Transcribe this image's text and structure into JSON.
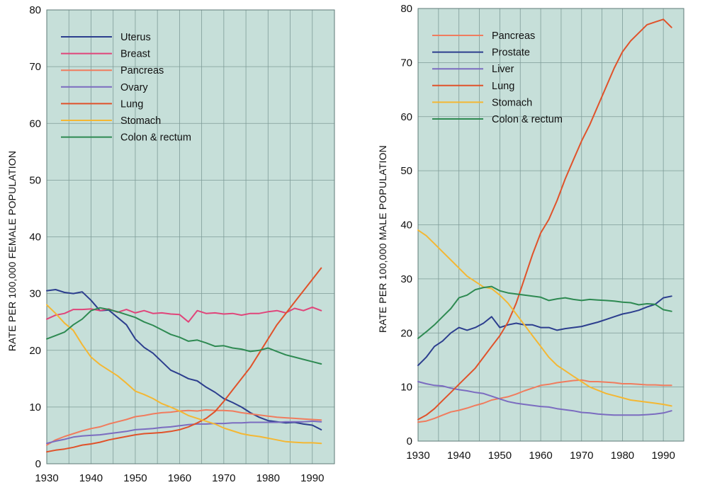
{
  "colors": {
    "plot_bg": "#c6dfd9",
    "grid": "#7f9c98",
    "uterus": "#2c3e8e",
    "breast": "#e0457a",
    "pancreas": "#f07c5e",
    "ovary": "#7b6cc0",
    "lung": "#e0522a",
    "stomach": "#f4b733",
    "colon": "#2e8a52",
    "prostate": "#2c3e8e",
    "liver": "#7b6cc0"
  },
  "chart_data": [
    {
      "id": "female",
      "type": "line",
      "title": "",
      "xlabel": "",
      "ylabel": "RATE PER 100,000 FEMALE POPULATION",
      "xlim": [
        1930,
        1995
      ],
      "ylim": [
        0,
        80
      ],
      "xticks": [
        "1930",
        "1940",
        "1950",
        "1960",
        "1970",
        "1980",
        "1990"
      ],
      "yticks": [
        "0",
        "10",
        "20",
        "30",
        "40",
        "50",
        "60",
        "70",
        "80"
      ],
      "grid": true,
      "legend_position": "top-left",
      "series": [
        {
          "name": "Uterus",
          "color_key": "uterus",
          "x": [
            1930,
            1932,
            1934,
            1936,
            1938,
            1940,
            1942,
            1944,
            1946,
            1948,
            1950,
            1952,
            1954,
            1956,
            1958,
            1960,
            1962,
            1964,
            1966,
            1968,
            1970,
            1972,
            1974,
            1976,
            1978,
            1980,
            1982,
            1984,
            1986,
            1988,
            1990,
            1992
          ],
          "y": [
            30.5,
            30.7,
            30.2,
            30.0,
            30.3,
            28.8,
            27.0,
            27.1,
            25.8,
            24.5,
            22.0,
            20.5,
            19.5,
            18.0,
            16.5,
            15.8,
            15.0,
            14.6,
            13.5,
            12.6,
            11.5,
            10.8,
            10.0,
            9.0,
            8.2,
            7.6,
            7.4,
            7.2,
            7.3,
            7.0,
            6.8,
            6.0
          ]
        },
        {
          "name": "Breast",
          "color_key": "breast",
          "x": [
            1930,
            1932,
            1934,
            1936,
            1938,
            1940,
            1942,
            1944,
            1946,
            1948,
            1950,
            1952,
            1954,
            1956,
            1958,
            1960,
            1962,
            1964,
            1966,
            1968,
            1970,
            1972,
            1974,
            1976,
            1978,
            1980,
            1982,
            1984,
            1986,
            1988,
            1990,
            1992
          ],
          "y": [
            25.5,
            26.2,
            26.5,
            27.2,
            27.2,
            27.3,
            27.0,
            27.3,
            26.7,
            27.2,
            26.6,
            27.0,
            26.5,
            26.6,
            26.4,
            26.3,
            25.0,
            27.0,
            26.5,
            26.6,
            26.4,
            26.5,
            26.2,
            26.5,
            26.5,
            26.8,
            27.0,
            26.6,
            27.4,
            27.0,
            27.6,
            27.0
          ]
        },
        {
          "name": "Pancreas",
          "color_key": "pancreas",
          "x": [
            1930,
            1932,
            1934,
            1936,
            1938,
            1940,
            1942,
            1944,
            1946,
            1948,
            1950,
            1952,
            1954,
            1956,
            1958,
            1960,
            1962,
            1964,
            1966,
            1968,
            1970,
            1972,
            1974,
            1976,
            1978,
            1980,
            1982,
            1984,
            1986,
            1988,
            1990,
            1992
          ],
          "y": [
            3.3,
            4.2,
            4.8,
            5.3,
            5.8,
            6.2,
            6.5,
            7.0,
            7.4,
            7.8,
            8.3,
            8.5,
            8.8,
            9.0,
            9.1,
            9.3,
            9.4,
            9.3,
            9.5,
            9.4,
            9.4,
            9.3,
            9.0,
            8.8,
            8.6,
            8.4,
            8.2,
            8.1,
            8.0,
            7.9,
            7.8,
            7.7
          ]
        },
        {
          "name": "Ovary",
          "color_key": "ovary",
          "x": [
            1930,
            1932,
            1934,
            1936,
            1938,
            1940,
            1942,
            1944,
            1946,
            1948,
            1950,
            1952,
            1954,
            1956,
            1958,
            1960,
            1962,
            1964,
            1966,
            1968,
            1970,
            1972,
            1974,
            1976,
            1978,
            1980,
            1982,
            1984,
            1986,
            1988,
            1990,
            1992
          ],
          "y": [
            3.6,
            4.0,
            4.3,
            4.7,
            4.9,
            5.0,
            5.1,
            5.3,
            5.5,
            5.7,
            6.0,
            6.1,
            6.2,
            6.4,
            6.5,
            6.7,
            6.9,
            7.0,
            7.0,
            7.1,
            7.1,
            7.2,
            7.2,
            7.3,
            7.3,
            7.3,
            7.3,
            7.4,
            7.4,
            7.4,
            7.5,
            7.4
          ]
        },
        {
          "name": "Lung",
          "color_key": "lung",
          "x": [
            1930,
            1932,
            1934,
            1936,
            1938,
            1940,
            1942,
            1944,
            1946,
            1948,
            1950,
            1952,
            1954,
            1956,
            1958,
            1960,
            1962,
            1964,
            1966,
            1968,
            1970,
            1972,
            1974,
            1976,
            1978,
            1980,
            1982,
            1984,
            1986,
            1988,
            1990,
            1992
          ],
          "y": [
            2.1,
            2.4,
            2.6,
            2.9,
            3.3,
            3.5,
            3.8,
            4.2,
            4.5,
            4.8,
            5.1,
            5.3,
            5.4,
            5.5,
            5.7,
            6.0,
            6.5,
            7.2,
            8.0,
            9.2,
            11.0,
            13.0,
            15.0,
            17.0,
            19.5,
            22.0,
            24.5,
            26.5,
            28.5,
            30.5,
            32.5,
            34.5
          ]
        },
        {
          "name": "Stomach",
          "color_key": "stomach",
          "x": [
            1930,
            1932,
            1934,
            1936,
            1938,
            1940,
            1942,
            1944,
            1946,
            1948,
            1950,
            1952,
            1954,
            1956,
            1958,
            1960,
            1962,
            1964,
            1966,
            1968,
            1970,
            1972,
            1974,
            1976,
            1978,
            1980,
            1982,
            1984,
            1986,
            1988,
            1990,
            1992
          ],
          "y": [
            28.0,
            26.5,
            24.8,
            23.5,
            21.0,
            18.8,
            17.5,
            16.5,
            15.5,
            14.2,
            12.8,
            12.2,
            11.5,
            10.6,
            10.0,
            9.3,
            8.5,
            8.0,
            7.5,
            7.0,
            6.3,
            5.8,
            5.3,
            5.0,
            4.8,
            4.5,
            4.2,
            3.9,
            3.8,
            3.7,
            3.7,
            3.6
          ]
        },
        {
          "name": "Colon & rectum",
          "color_key": "colon",
          "x": [
            1930,
            1932,
            1934,
            1936,
            1938,
            1940,
            1942,
            1944,
            1946,
            1948,
            1950,
            1952,
            1954,
            1956,
            1958,
            1960,
            1962,
            1964,
            1966,
            1968,
            1970,
            1972,
            1974,
            1976,
            1978,
            1980,
            1982,
            1984,
            1986,
            1988,
            1990,
            1992
          ],
          "y": [
            22.0,
            22.6,
            23.2,
            24.5,
            25.5,
            27.0,
            27.5,
            27.2,
            26.8,
            26.3,
            25.8,
            25.0,
            24.4,
            23.6,
            22.8,
            22.3,
            21.6,
            21.8,
            21.3,
            20.7,
            20.8,
            20.4,
            20.2,
            19.8,
            20.0,
            20.4,
            19.8,
            19.2,
            18.8,
            18.4,
            18.0,
            17.6
          ]
        }
      ]
    },
    {
      "id": "male",
      "type": "line",
      "title": "",
      "xlabel": "",
      "ylabel": "RATE PER 100,000 MALE POPULATION",
      "xlim": [
        1930,
        1995
      ],
      "ylim": [
        0,
        80
      ],
      "xticks": [
        "1930",
        "1940",
        "1950",
        "1960",
        "1970",
        "1980",
        "1990"
      ],
      "yticks": [
        "0",
        "10",
        "20",
        "30",
        "40",
        "50",
        "60",
        "70",
        "80"
      ],
      "grid": true,
      "legend_position": "top-left",
      "series": [
        {
          "name": "Pancreas",
          "color_key": "pancreas",
          "x": [
            1930,
            1932,
            1934,
            1936,
            1938,
            1940,
            1942,
            1944,
            1946,
            1948,
            1950,
            1952,
            1954,
            1956,
            1958,
            1960,
            1962,
            1964,
            1966,
            1968,
            1970,
            1972,
            1974,
            1976,
            1978,
            1980,
            1982,
            1984,
            1986,
            1988,
            1990,
            1992
          ],
          "y": [
            3.5,
            3.7,
            4.2,
            4.8,
            5.4,
            5.7,
            6.1,
            6.6,
            7.0,
            7.6,
            7.9,
            8.2,
            8.7,
            9.3,
            9.8,
            10.3,
            10.5,
            10.8,
            11.0,
            11.2,
            11.3,
            11.0,
            11.0,
            10.9,
            10.8,
            10.6,
            10.6,
            10.5,
            10.4,
            10.4,
            10.3,
            10.3
          ]
        },
        {
          "name": "Prostate",
          "color_key": "prostate",
          "x": [
            1930,
            1932,
            1934,
            1936,
            1938,
            1940,
            1942,
            1944,
            1946,
            1948,
            1950,
            1952,
            1954,
            1956,
            1958,
            1960,
            1962,
            1964,
            1966,
            1968,
            1970,
            1972,
            1974,
            1976,
            1978,
            1980,
            1982,
            1984,
            1986,
            1988,
            1990,
            1992
          ],
          "y": [
            14.0,
            15.5,
            17.5,
            18.5,
            20.0,
            21.0,
            20.5,
            21.0,
            21.8,
            23.0,
            21.0,
            21.5,
            21.8,
            21.5,
            21.5,
            21.0,
            21.0,
            20.5,
            20.8,
            21.0,
            21.2,
            21.6,
            22.0,
            22.5,
            23.0,
            23.5,
            23.8,
            24.2,
            24.8,
            25.3,
            26.5,
            26.8
          ]
        },
        {
          "name": "Liver",
          "color_key": "liver",
          "x": [
            1930,
            1932,
            1934,
            1936,
            1938,
            1940,
            1942,
            1944,
            1946,
            1948,
            1950,
            1952,
            1954,
            1956,
            1958,
            1960,
            1962,
            1964,
            1966,
            1968,
            1970,
            1972,
            1974,
            1976,
            1978,
            1980,
            1982,
            1984,
            1986,
            1988,
            1990,
            1992
          ],
          "y": [
            11.0,
            10.6,
            10.3,
            10.2,
            9.8,
            9.5,
            9.3,
            9.0,
            8.8,
            8.3,
            7.8,
            7.3,
            7.0,
            6.8,
            6.6,
            6.4,
            6.3,
            6.0,
            5.8,
            5.6,
            5.3,
            5.2,
            5.0,
            4.9,
            4.8,
            4.8,
            4.8,
            4.8,
            4.9,
            5.0,
            5.2,
            5.6
          ]
        },
        {
          "name": "Lung",
          "color_key": "lung",
          "x": [
            1930,
            1932,
            1934,
            1936,
            1938,
            1940,
            1942,
            1944,
            1946,
            1948,
            1950,
            1952,
            1954,
            1956,
            1958,
            1960,
            1962,
            1964,
            1966,
            1968,
            1970,
            1972,
            1974,
            1976,
            1978,
            1980,
            1982,
            1984,
            1986,
            1988,
            1990,
            1992
          ],
          "y": [
            4.0,
            4.8,
            6.0,
            7.5,
            9.0,
            10.5,
            12.0,
            13.5,
            15.5,
            17.5,
            19.5,
            22.0,
            25.5,
            30.0,
            34.5,
            38.5,
            41.0,
            44.5,
            48.5,
            52.0,
            55.5,
            58.5,
            62.0,
            65.5,
            69.0,
            72.0,
            74.0,
            75.5,
            77.0,
            77.5,
            78.0,
            76.5
          ]
        },
        {
          "name": "Stomach",
          "color_key": "stomach",
          "x": [
            1930,
            1932,
            1934,
            1936,
            1938,
            1940,
            1942,
            1944,
            1946,
            1948,
            1950,
            1952,
            1954,
            1956,
            1958,
            1960,
            1962,
            1964,
            1966,
            1968,
            1970,
            1972,
            1974,
            1976,
            1978,
            1980,
            1982,
            1984,
            1986,
            1988,
            1990,
            1992
          ],
          "y": [
            39.0,
            38.0,
            36.5,
            35.0,
            33.5,
            32.0,
            30.5,
            29.5,
            28.5,
            28.2,
            27.0,
            25.5,
            23.5,
            21.5,
            19.5,
            17.5,
            15.5,
            14.0,
            13.0,
            12.0,
            11.0,
            10.0,
            9.4,
            8.8,
            8.4,
            8.0,
            7.6,
            7.4,
            7.2,
            7.0,
            6.8,
            6.5
          ]
        },
        {
          "name": "Colon & rectum",
          "color_key": "colon",
          "x": [
            1930,
            1932,
            1934,
            1936,
            1938,
            1940,
            1942,
            1944,
            1946,
            1948,
            1950,
            1952,
            1954,
            1956,
            1958,
            1960,
            1962,
            1964,
            1966,
            1968,
            1970,
            1972,
            1974,
            1976,
            1978,
            1980,
            1982,
            1984,
            1986,
            1988,
            1990,
            1992
          ],
          "y": [
            19.0,
            20.2,
            21.5,
            23.0,
            24.5,
            26.5,
            27.0,
            28.0,
            28.4,
            28.6,
            27.8,
            27.4,
            27.2,
            27.0,
            26.8,
            26.6,
            26.0,
            26.3,
            26.5,
            26.2,
            26.0,
            26.2,
            26.1,
            26.0,
            25.9,
            25.7,
            25.6,
            25.2,
            25.4,
            25.3,
            24.3,
            24.0
          ]
        }
      ]
    }
  ]
}
